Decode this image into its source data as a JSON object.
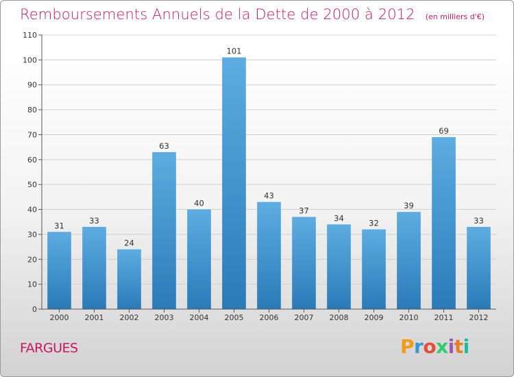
{
  "header": {
    "title": "Remboursements Annuels de la Dette de 2000 à 2012",
    "unit": "(en milliers d'€)"
  },
  "footer": {
    "commune": "FARGUES",
    "logo": [
      "P",
      "r",
      "o",
      "x",
      "i",
      "t",
      "i"
    ],
    "logo_colors": [
      "#f39c12",
      "#3498db",
      "#e74c3c",
      "#2ecc71",
      "#9b59b6",
      "#e67e22",
      "#1abc9c"
    ]
  },
  "colors": {
    "title": "#c8175e",
    "bar_top": "#5dade2",
    "bar_bottom": "#2a7ab8",
    "grid": "#d0d0d0"
  },
  "chart_data": {
    "type": "bar",
    "title": "Remboursements Annuels de la Dette de 2000 à 2012",
    "categories": [
      "2000",
      "2001",
      "2002",
      "2003",
      "2004",
      "2005",
      "2006",
      "2007",
      "2008",
      "2009",
      "2010",
      "2011",
      "2012"
    ],
    "values": [
      31,
      33,
      24,
      63,
      40,
      101,
      43,
      37,
      34,
      32,
      39,
      69,
      33
    ],
    "ylim": [
      0,
      110
    ],
    "yticks": [
      0,
      10,
      20,
      30,
      40,
      50,
      60,
      70,
      80,
      90,
      100,
      110
    ],
    "grid": true,
    "legend": "none"
  }
}
